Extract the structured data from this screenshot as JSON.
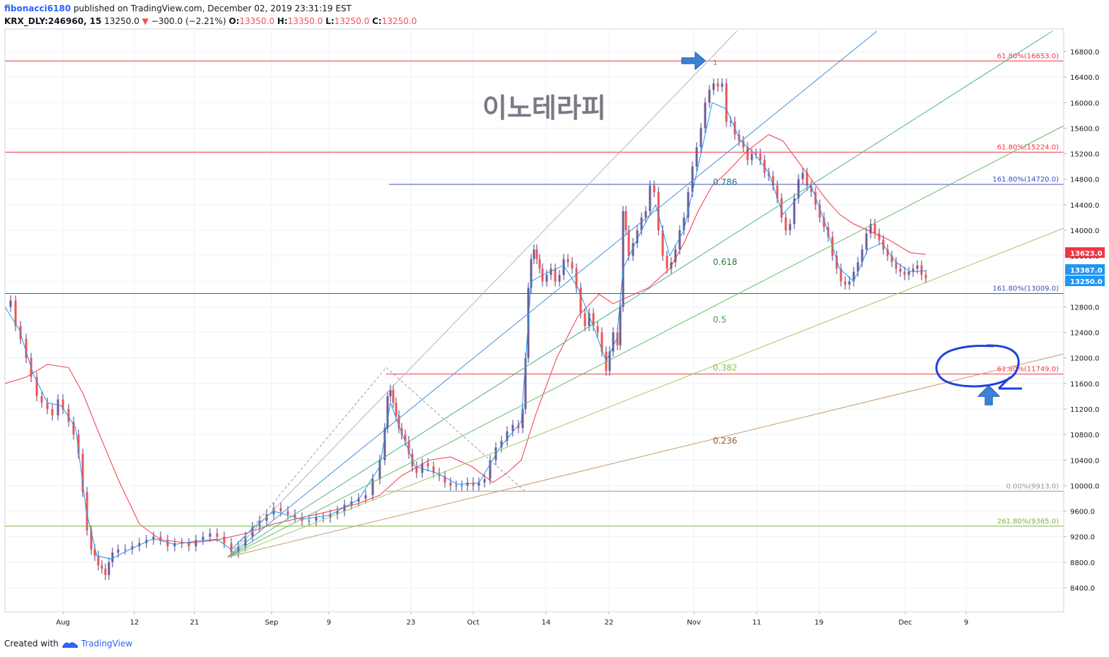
{
  "header": {
    "author": "fibonacci6180",
    "published_text": "published on TradingView.com, December 02, 2019 23:31:19 EST",
    "symbol": "KRX_DLY:246960, 15",
    "last": "13250.0",
    "down_arrow": "▼",
    "change": "−300.0 (−2.21%)",
    "o_label": "O:",
    "o": "13350.0",
    "h_label": "H:",
    "h": "13350.0",
    "l_label": "L:",
    "l": "13250.0",
    "c_label": "C:",
    "c": "13250.0"
  },
  "footer": {
    "created_with": "Created with",
    "brand": "TradingView",
    "logo_icon": "tradingview-logo-icon"
  },
  "colors": {
    "up": "#26a69a",
    "down": "#ef5350",
    "candle": "#6b5b95",
    "ma_fast": "#2196f3",
    "ma_slow": "#f23645",
    "grid": "#eef1f5",
    "axis_text": "#131722"
  },
  "chart_data": {
    "type": "line",
    "annotation_title": "이노테라피",
    "y_axis": {
      "ticks": [
        "8400.0",
        "8800.0",
        "9200.0",
        "9600.0",
        "10000.0",
        "10400.0",
        "10800.0",
        "11200.0",
        "11600.0",
        "12000.0",
        "12400.0",
        "12800.0",
        "13200.0",
        "13600.0",
        "14000.0",
        "14400.0",
        "14800.0",
        "15200.0",
        "15600.0",
        "16000.0",
        "16400.0",
        "16800.0"
      ],
      "ylim": [
        8000,
        17200
      ]
    },
    "x_axis": {
      "labels": [
        "Aug",
        "12",
        "21",
        "Sep",
        "9",
        "23",
        "Oct",
        "14",
        "22",
        "Nov",
        "11",
        "19",
        "Dec",
        "9"
      ]
    },
    "price_badges": [
      {
        "value": "13623.0",
        "color": "#f23645"
      },
      {
        "value": "13367.0",
        "color": "#2196f3"
      },
      {
        "value": "13250.0",
        "color": "#2196f3"
      }
    ],
    "levels": [
      {
        "label": "61.80%(16653.0)",
        "value": 16653,
        "color": "#f23645"
      },
      {
        "label": "61.80%(15224.0)",
        "value": 15224,
        "color": "#f23645"
      },
      {
        "label": "161.80%(14720.0)",
        "value": 14720,
        "color": "#3f51b5"
      },
      {
        "label": "161.80%(13009.0)",
        "value": 13009,
        "color": "#3f51b5"
      },
      {
        "label": "61.80%(11749.0)",
        "value": 11749,
        "color": "#f23645"
      },
      {
        "label": "0.00%(9913.0)",
        "value": 9913,
        "color": "#999999"
      },
      {
        "label": "261.80%(9365.0)",
        "value": 9365,
        "color": "#7cb342"
      }
    ],
    "fan_labels": [
      {
        "label": "0.786",
        "value": 14750,
        "color": "#2a6f97"
      },
      {
        "label": "0.618",
        "value": 13500,
        "color": "#2e7d32"
      },
      {
        "label": "0.5",
        "value": 12600,
        "color": "#43a047"
      },
      {
        "label": "0.382",
        "value": 11850,
        "color": "#8bc34a"
      },
      {
        "label": "0.236",
        "value": 10700,
        "color": "#a0522d"
      }
    ],
    "marker_one": "1",
    "price_series": [
      [
        0,
        12800
      ],
      [
        8,
        12900
      ],
      [
        15,
        12500
      ],
      [
        22,
        12300
      ],
      [
        30,
        12000
      ],
      [
        37,
        11700
      ],
      [
        45,
        11400
      ],
      [
        52,
        11300
      ],
      [
        60,
        11200
      ],
      [
        67,
        11100
      ],
      [
        75,
        11350
      ],
      [
        82,
        11200
      ],
      [
        90,
        11000
      ],
      [
        97,
        10800
      ],
      [
        104,
        10500
      ],
      [
        110,
        9900
      ],
      [
        116,
        9300
      ],
      [
        122,
        9000
      ],
      [
        127,
        8900
      ],
      [
        132,
        8750
      ],
      [
        137,
        8700
      ],
      [
        142,
        8600
      ],
      [
        147,
        8800
      ],
      [
        152,
        8950
      ],
      [
        160,
        9000
      ],
      [
        170,
        9000
      ],
      [
        180,
        9050
      ],
      [
        190,
        9100
      ],
      [
        200,
        9150
      ],
      [
        210,
        9200
      ],
      [
        220,
        9150
      ],
      [
        230,
        9050
      ],
      [
        240,
        9100
      ],
      [
        250,
        9100
      ],
      [
        260,
        9050
      ],
      [
        270,
        9150
      ],
      [
        280,
        9200
      ],
      [
        290,
        9250
      ],
      [
        300,
        9200
      ],
      [
        310,
        9100
      ],
      [
        320,
        8950
      ],
      [
        330,
        9050
      ],
      [
        340,
        9200
      ],
      [
        350,
        9350
      ],
      [
        360,
        9450
      ],
      [
        370,
        9550
      ],
      [
        380,
        9650
      ],
      [
        390,
        9600
      ],
      [
        400,
        9550
      ],
      [
        410,
        9500
      ],
      [
        420,
        9450
      ],
      [
        430,
        9450
      ],
      [
        440,
        9500
      ],
      [
        450,
        9500
      ],
      [
        460,
        9550
      ],
      [
        470,
        9600
      ],
      [
        480,
        9700
      ],
      [
        490,
        9750
      ],
      [
        500,
        9800
      ],
      [
        510,
        9850
      ],
      [
        520,
        10100
      ],
      [
        530,
        10400
      ],
      [
        537,
        10900
      ],
      [
        541,
        11400
      ],
      [
        545,
        11500
      ],
      [
        549,
        11300
      ],
      [
        553,
        11100
      ],
      [
        557,
        10900
      ],
      [
        561,
        10800
      ],
      [
        566,
        10700
      ],
      [
        571,
        10500
      ],
      [
        576,
        10300
      ],
      [
        582,
        10200
      ],
      [
        590,
        10350
      ],
      [
        598,
        10300
      ],
      [
        606,
        10200
      ],
      [
        614,
        10150
      ],
      [
        622,
        10050
      ],
      [
        630,
        10000
      ],
      [
        638,
        10000
      ],
      [
        646,
        10000
      ],
      [
        654,
        10050
      ],
      [
        662,
        10000
      ],
      [
        670,
        10050
      ],
      [
        678,
        10100
      ],
      [
        686,
        10400
      ],
      [
        694,
        10600
      ],
      [
        702,
        10700
      ],
      [
        710,
        10850
      ],
      [
        718,
        10950
      ],
      [
        726,
        10900
      ],
      [
        732,
        11200
      ],
      [
        736,
        12000
      ],
      [
        740,
        13100
      ],
      [
        744,
        13550
      ],
      [
        748,
        13700
      ],
      [
        752,
        13550
      ],
      [
        756,
        13400
      ],
      [
        760,
        13200
      ],
      [
        766,
        13300
      ],
      [
        772,
        13400
      ],
      [
        778,
        13200
      ],
      [
        784,
        13300
      ],
      [
        790,
        13550
      ],
      [
        796,
        13500
      ],
      [
        802,
        13400
      ],
      [
        808,
        13100
      ],
      [
        814,
        12700
      ],
      [
        820,
        12500
      ],
      [
        826,
        12700
      ],
      [
        832,
        12500
      ],
      [
        838,
        12400
      ],
      [
        844,
        12100
      ],
      [
        850,
        11800
      ],
      [
        855,
        12100
      ],
      [
        860,
        12400
      ],
      [
        866,
        12200
      ],
      [
        870,
        12800
      ],
      [
        874,
        14300
      ],
      [
        878,
        14000
      ],
      [
        882,
        13600
      ],
      [
        888,
        13800
      ],
      [
        894,
        14000
      ],
      [
        900,
        14200
      ],
      [
        906,
        14300
      ],
      [
        912,
        14700
      ],
      [
        918,
        14600
      ],
      [
        924,
        14000
      ],
      [
        930,
        13600
      ],
      [
        936,
        13400
      ],
      [
        942,
        13500
      ],
      [
        948,
        13700
      ],
      [
        954,
        14000
      ],
      [
        960,
        14200
      ],
      [
        966,
        14600
      ],
      [
        972,
        15000
      ],
      [
        978,
        15300
      ],
      [
        984,
        15600
      ],
      [
        990,
        16000
      ],
      [
        996,
        16200
      ],
      [
        1002,
        16300
      ],
      [
        1008,
        16250
      ],
      [
        1014,
        16300
      ],
      [
        1020,
        15700
      ],
      [
        1026,
        15700
      ],
      [
        1032,
        15500
      ],
      [
        1038,
        15400
      ],
      [
        1044,
        15300
      ],
      [
        1050,
        15100
      ],
      [
        1056,
        15200
      ],
      [
        1062,
        15200
      ],
      [
        1068,
        15100
      ],
      [
        1074,
        14900
      ],
      [
        1080,
        14850
      ],
      [
        1086,
        14700
      ],
      [
        1092,
        14500
      ],
      [
        1098,
        14200
      ],
      [
        1104,
        14000
      ],
      [
        1110,
        14100
      ],
      [
        1116,
        14500
      ],
      [
        1122,
        14800
      ],
      [
        1128,
        14900
      ],
      [
        1134,
        14700
      ],
      [
        1140,
        14600
      ],
      [
        1146,
        14400
      ],
      [
        1152,
        14200
      ],
      [
        1158,
        14050
      ],
      [
        1164,
        13900
      ],
      [
        1170,
        13600
      ],
      [
        1176,
        13400
      ],
      [
        1182,
        13200
      ],
      [
        1188,
        13150
      ],
      [
        1194,
        13200
      ],
      [
        1200,
        13350
      ],
      [
        1206,
        13500
      ],
      [
        1212,
        13700
      ],
      [
        1218,
        13950
      ],
      [
        1224,
        14100
      ],
      [
        1230,
        13950
      ],
      [
        1236,
        13850
      ],
      [
        1242,
        13700
      ],
      [
        1248,
        13600
      ],
      [
        1254,
        13500
      ],
      [
        1260,
        13400
      ],
      [
        1266,
        13350
      ],
      [
        1272,
        13300
      ],
      [
        1278,
        13350
      ],
      [
        1284,
        13400
      ],
      [
        1290,
        13450
      ],
      [
        1296,
        13300
      ],
      [
        1302,
        13250
      ]
    ],
    "ma_fast": [
      [
        0,
        12800
      ],
      [
        20,
        12450
      ],
      [
        40,
        11750
      ],
      [
        60,
        11300
      ],
      [
        80,
        11250
      ],
      [
        100,
        10900
      ],
      [
        115,
        9600
      ],
      [
        130,
        8900
      ],
      [
        150,
        8850
      ],
      [
        180,
        9020
      ],
      [
        210,
        9170
      ],
      [
        240,
        9080
      ],
      [
        270,
        9130
      ],
      [
        300,
        9160
      ],
      [
        320,
        9000
      ],
      [
        350,
        9330
      ],
      [
        380,
        9600
      ],
      [
        420,
        9470
      ],
      [
        460,
        9540
      ],
      [
        500,
        9780
      ],
      [
        530,
        10300
      ],
      [
        545,
        11300
      ],
      [
        560,
        10850
      ],
      [
        580,
        10300
      ],
      [
        610,
        10200
      ],
      [
        640,
        10020
      ],
      [
        670,
        10040
      ],
      [
        700,
        10600
      ],
      [
        730,
        11000
      ],
      [
        744,
        13200
      ],
      [
        760,
        13300
      ],
      [
        790,
        13450
      ],
      [
        810,
        13100
      ],
      [
        830,
        12550
      ],
      [
        850,
        11950
      ],
      [
        865,
        12300
      ],
      [
        874,
        13400
      ],
      [
        900,
        14000
      ],
      [
        920,
        14400
      ],
      [
        940,
        13600
      ],
      [
        960,
        14000
      ],
      [
        980,
        15000
      ],
      [
        1000,
        16000
      ],
      [
        1020,
        15900
      ],
      [
        1040,
        15400
      ],
      [
        1060,
        15200
      ],
      [
        1080,
        14900
      ],
      [
        1100,
        14250
      ],
      [
        1120,
        14500
      ],
      [
        1140,
        14700
      ],
      [
        1160,
        14100
      ],
      [
        1180,
        13400
      ],
      [
        1200,
        13200
      ],
      [
        1220,
        13700
      ],
      [
        1240,
        13800
      ],
      [
        1260,
        13500
      ],
      [
        1280,
        13350
      ],
      [
        1302,
        13367
      ]
    ],
    "ma_slow": [
      [
        0,
        11600
      ],
      [
        30,
        11700
      ],
      [
        60,
        11900
      ],
      [
        90,
        11850
      ],
      [
        110,
        11450
      ],
      [
        130,
        10900
      ],
      [
        160,
        10100
      ],
      [
        190,
        9400
      ],
      [
        220,
        9150
      ],
      [
        260,
        9100
      ],
      [
        300,
        9150
      ],
      [
        340,
        9250
      ],
      [
        380,
        9400
      ],
      [
        420,
        9500
      ],
      [
        460,
        9600
      ],
      [
        500,
        9720
      ],
      [
        530,
        9850
      ],
      [
        560,
        10150
      ],
      [
        600,
        10400
      ],
      [
        630,
        10450
      ],
      [
        660,
        10300
      ],
      [
        690,
        10050
      ],
      [
        710,
        10200
      ],
      [
        730,
        10400
      ],
      [
        750,
        11100
      ],
      [
        780,
        12000
      ],
      [
        810,
        12650
      ],
      [
        840,
        13000
      ],
      [
        860,
        12850
      ],
      [
        880,
        12950
      ],
      [
        910,
        13100
      ],
      [
        940,
        13400
      ],
      [
        960,
        13800
      ],
      [
        980,
        14300
      ],
      [
        1000,
        14700
      ],
      [
        1020,
        14900
      ],
      [
        1050,
        15250
      ],
      [
        1080,
        15500
      ],
      [
        1100,
        15400
      ],
      [
        1120,
        15100
      ],
      [
        1140,
        14800
      ],
      [
        1160,
        14500
      ],
      [
        1180,
        14250
      ],
      [
        1200,
        14100
      ],
      [
        1220,
        14000
      ],
      [
        1250,
        13850
      ],
      [
        1280,
        13650
      ],
      [
        1302,
        13623
      ]
    ]
  }
}
